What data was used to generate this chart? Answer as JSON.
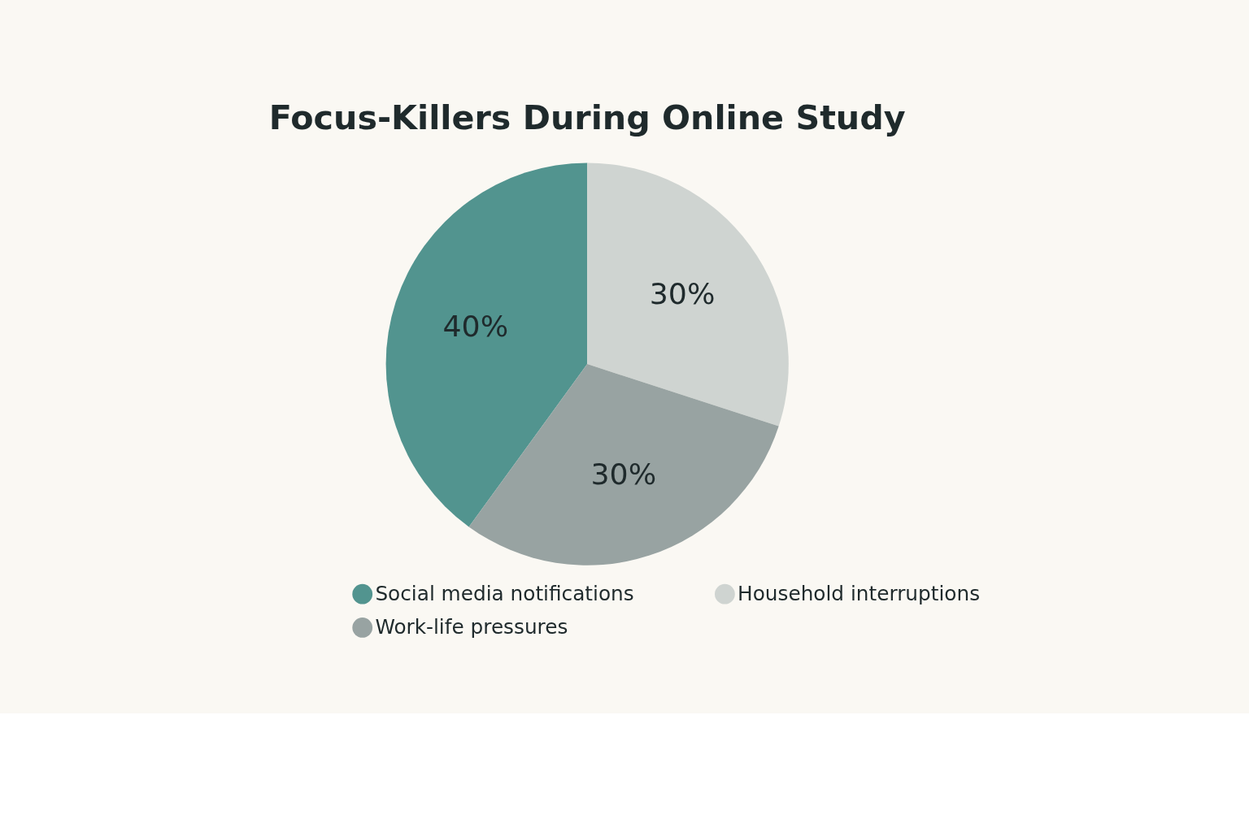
{
  "chart_data": {
    "type": "pie",
    "title": "Focus-Killers During Online Study",
    "categories": [
      "Social media notifications",
      "Household interruptions",
      "Work-life pressures"
    ],
    "values": [
      40,
      30,
      30
    ],
    "colors": [
      "#52948f",
      "#cfd4d1",
      "#98a3a2"
    ],
    "value_labels": [
      "40%",
      "30%",
      "30%"
    ],
    "legend": "bottom"
  }
}
